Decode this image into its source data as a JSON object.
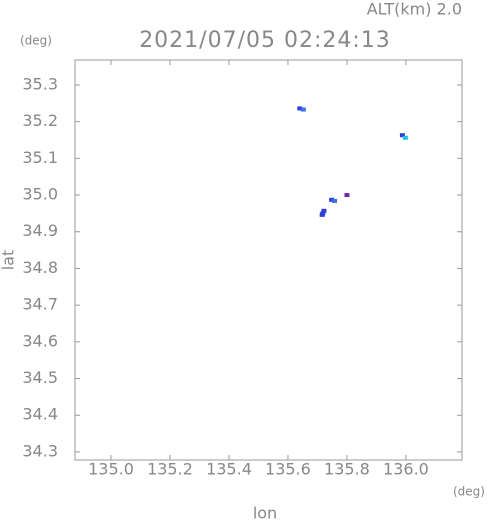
{
  "chart_data": {
    "type": "scatter",
    "annotation": "ALT(km) 2.0",
    "title": "2021/07/05 02:24:13",
    "y_unit": "(deg)",
    "x_unit": "(deg)",
    "xlabel": "lon",
    "ylabel": "lat",
    "x": [
      135.64,
      135.652,
      135.988,
      135.998,
      135.8,
      135.748,
      135.758,
      135.722,
      135.718,
      135.716
    ],
    "y": [
      35.236,
      35.233,
      35.163,
      35.156,
      35.0,
      34.987,
      34.984,
      34.957,
      34.95,
      34.946
    ],
    "colors": [
      "#2a3fd6",
      "#3a6ef0",
      "#2a3fd6",
      "#22c0f0",
      "#6a2ab0",
      "#2a3fd6",
      "#3a6ef0",
      "#2a3fd6",
      "#3a3fe0",
      "#2a3fd6"
    ],
    "xlim": [
      134.878,
      136.19
    ],
    "ylim": [
      34.278,
      35.368
    ],
    "xticks": [
      {
        "value": 135.0,
        "label": "135.0"
      },
      {
        "value": 135.2,
        "label": "135.2"
      },
      {
        "value": 135.4,
        "label": "135.4"
      },
      {
        "value": 135.6,
        "label": "135.6"
      },
      {
        "value": 135.8,
        "label": "135.8"
      },
      {
        "value": 136.0,
        "label": "136.0"
      }
    ],
    "yticks": [
      {
        "value": 34.3,
        "label": "34.3"
      },
      {
        "value": 34.4,
        "label": "34.4"
      },
      {
        "value": 34.5,
        "label": "34.5"
      },
      {
        "value": 34.6,
        "label": "34.6"
      },
      {
        "value": 34.7,
        "label": "34.7"
      },
      {
        "value": 34.8,
        "label": "34.8"
      },
      {
        "value": 34.9,
        "label": "34.9"
      },
      {
        "value": 35.0,
        "label": "35.0"
      },
      {
        "value": 35.1,
        "label": "35.1"
      },
      {
        "value": 35.2,
        "label": "35.2"
      },
      {
        "value": 35.3,
        "label": "35.3"
      }
    ]
  }
}
